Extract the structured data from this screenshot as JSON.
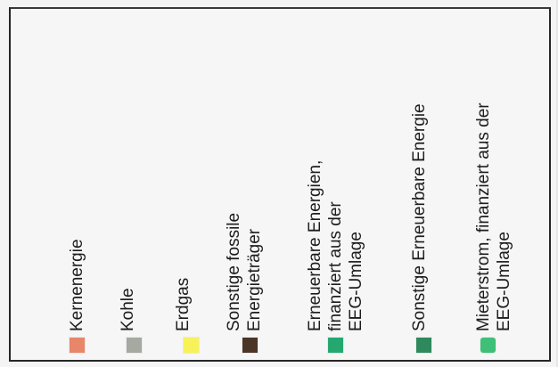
{
  "legend": {
    "items": [
      {
        "lines": [
          "Kernenergie"
        ],
        "color": "#e8866a"
      },
      {
        "lines": [
          "Kohle"
        ],
        "color": "#a4aaa2"
      },
      {
        "lines": [
          "Erdgas"
        ],
        "color": "#f7f25a"
      },
      {
        "lines": [
          "Sonstige fossile",
          "Energieträger"
        ],
        "color": "#4b3527"
      },
      {
        "lines": [
          "Erneuerbare Energien,",
          "finanziert aus der",
          "EEG-Umlage"
        ],
        "color": "#25a86f"
      },
      {
        "lines": [
          "Sonstige Erneuerbare Energie"
        ],
        "color": "#2e8a5d"
      },
      {
        "lines": [
          "Mieterstrom, finanziert aus der",
          "EEG-Umlage"
        ],
        "color": "#3ec078"
      }
    ]
  }
}
